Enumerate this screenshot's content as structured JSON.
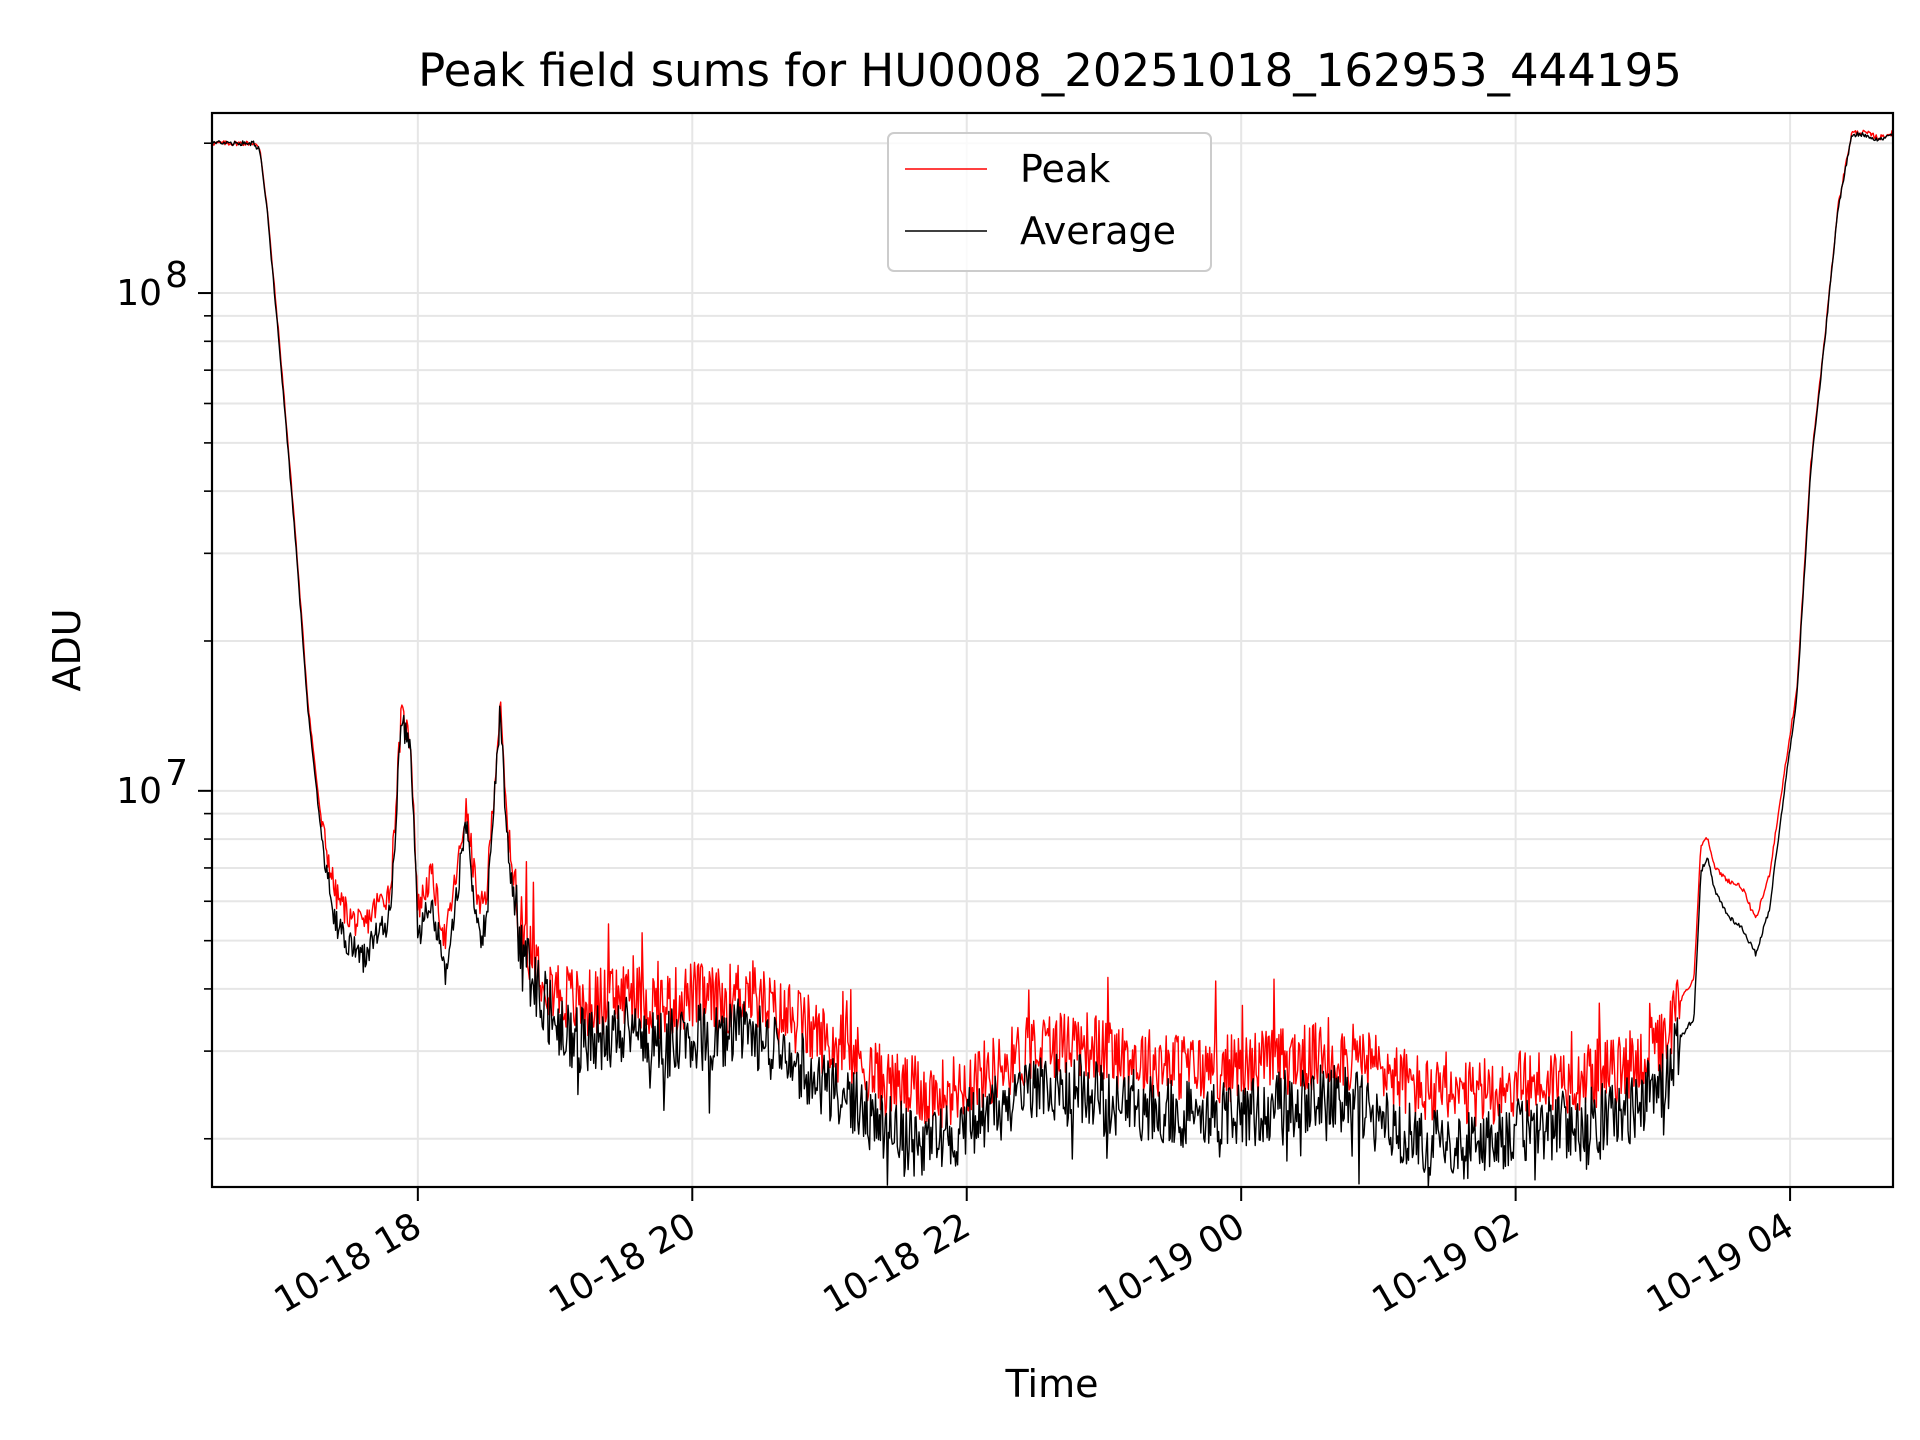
{
  "chart_data": {
    "type": "line",
    "title": "Peak field sums for HU0008_20251018_162953_444195",
    "xlabel": "Time",
    "ylabel": "ADU",
    "yscale": "log",
    "ylim": [
      1600000,
      230000000
    ],
    "xlim_hours": [
      16.5,
      28.75
    ],
    "grid": true,
    "legend_position": "upper center",
    "x_ticks": [
      {
        "label": "10-18 18",
        "hours": 18
      },
      {
        "label": "10-18 20",
        "hours": 20
      },
      {
        "label": "10-18 22",
        "hours": 22
      },
      {
        "label": "10-19 00",
        "hours": 24
      },
      {
        "label": "10-19 02",
        "hours": 26
      },
      {
        "label": "10-19 04",
        "hours": 28
      }
    ],
    "y_ticks": [
      {
        "base": "10",
        "exp": "7",
        "value": 10000000
      },
      {
        "base": "10",
        "exp": "8",
        "value": 100000000
      }
    ],
    "series": [
      {
        "name": "Peak",
        "color": "#ff0000",
        "x_hours": [
          16.5,
          16.8,
          16.85,
          16.9,
          17.0,
          17.1,
          17.2,
          17.3,
          17.4,
          17.5,
          17.6,
          17.7,
          17.8,
          17.88,
          17.95,
          18.0,
          18.1,
          18.2,
          18.3,
          18.35,
          18.45,
          18.5,
          18.6,
          18.65,
          18.75,
          18.9,
          19.0,
          19.2,
          19.5,
          19.8,
          20.0,
          20.2,
          20.4,
          20.6,
          20.8,
          21.0,
          21.2,
          21.4,
          21.6,
          21.8,
          22.0,
          22.2,
          22.4,
          22.6,
          22.8,
          23.0,
          23.2,
          23.5,
          23.8,
          24.0,
          24.2,
          24.5,
          24.7,
          25.0,
          25.2,
          25.4,
          25.6,
          25.8,
          26.0,
          26.2,
          26.4,
          26.6,
          26.8,
          27.0,
          27.1,
          27.2,
          27.3,
          27.35,
          27.4,
          27.45,
          27.55,
          27.65,
          27.75,
          27.85,
          27.95,
          28.05,
          28.15,
          28.25,
          28.35,
          28.45,
          28.55,
          28.65,
          28.75
        ],
        "values": [
          200000000,
          200000000,
          195000000,
          150000000,
          75000000,
          35000000,
          15000000,
          8500000,
          6200000,
          5600000,
          5300000,
          5900000,
          6300000,
          14200000,
          12500000,
          5800000,
          6800000,
          5000000,
          7300000,
          9200000,
          5700000,
          6200000,
          14800000,
          8500000,
          5300000,
          4400000,
          4000000,
          3700000,
          3900000,
          3700000,
          3900000,
          3750000,
          4000000,
          3600000,
          3400000,
          3100000,
          2900000,
          2600000,
          2500000,
          2450000,
          2600000,
          2750000,
          2950000,
          3100000,
          3150000,
          3000000,
          2900000,
          2800000,
          2750000,
          2800000,
          2850000,
          2900000,
          2950000,
          2800000,
          2600000,
          2450000,
          2400000,
          2500000,
          2550000,
          2600000,
          2650000,
          2700000,
          2750000,
          3000000,
          3100000,
          3800000,
          4200000,
          7800000,
          8100000,
          7000000,
          6600000,
          6400000,
          5500000,
          6800000,
          10500000,
          16000000,
          45000000,
          80000000,
          150000000,
          210000000,
          210000000,
          205000000,
          210000000
        ]
      },
      {
        "name": "Average",
        "color": "#000000",
        "x_hours": [
          16.5,
          16.8,
          16.85,
          16.9,
          17.0,
          17.1,
          17.2,
          17.3,
          17.4,
          17.5,
          17.6,
          17.7,
          17.8,
          17.88,
          17.95,
          18.0,
          18.1,
          18.2,
          18.3,
          18.35,
          18.45,
          18.5,
          18.6,
          18.65,
          18.75,
          18.9,
          19.0,
          19.2,
          19.5,
          19.8,
          20.0,
          20.2,
          20.4,
          20.6,
          20.8,
          21.0,
          21.2,
          21.4,
          21.6,
          21.8,
          22.0,
          22.2,
          22.4,
          22.6,
          22.8,
          23.0,
          23.2,
          23.5,
          23.8,
          24.0,
          24.2,
          24.5,
          24.7,
          25.0,
          25.2,
          25.4,
          25.6,
          25.8,
          26.0,
          26.2,
          26.4,
          26.6,
          26.8,
          27.0,
          27.1,
          27.2,
          27.3,
          27.35,
          27.4,
          27.45,
          27.55,
          27.65,
          27.75,
          27.85,
          27.95,
          28.05,
          28.15,
          28.25,
          28.35,
          28.45,
          28.55,
          28.65,
          28.75
        ],
        "values": [
          200000000,
          200000000,
          193000000,
          148000000,
          73000000,
          34000000,
          14500000,
          8000000,
          5500000,
          4900000,
          4600000,
          5100000,
          5600000,
          13800000,
          12000000,
          5100000,
          6000000,
          4300000,
          6700000,
          8600000,
          5000000,
          5500000,
          14300000,
          8000000,
          4700000,
          3900000,
          3400000,
          3150000,
          3300000,
          3100000,
          3250000,
          3150000,
          3300000,
          3050000,
          2800000,
          2550000,
          2350000,
          2100000,
          1980000,
          1950000,
          2150000,
          2300000,
          2450000,
          2550000,
          2550000,
          2400000,
          2350000,
          2250000,
          2200000,
          2250000,
          2300000,
          2400000,
          2450000,
          2200000,
          2050000,
          1950000,
          1900000,
          2000000,
          2050000,
          2100000,
          2150000,
          2200000,
          2250000,
          2500000,
          2600000,
          3200000,
          3500000,
          6900000,
          7300000,
          6300000,
          5600000,
          5300000,
          4700000,
          5800000,
          9600000,
          15500000,
          44000000,
          79000000,
          148000000,
          208000000,
          208000000,
          203000000,
          208000000
        ]
      }
    ]
  }
}
